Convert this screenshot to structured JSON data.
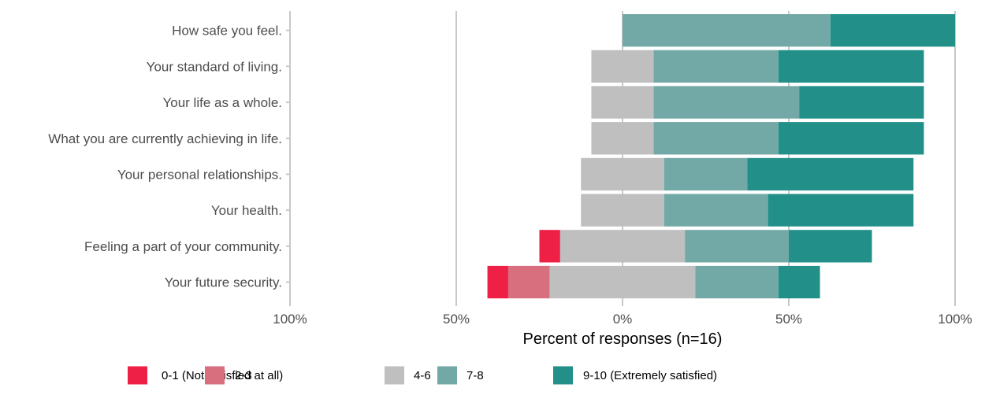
{
  "chart_data": {
    "type": "bar",
    "orientation": "horizontal",
    "stacking": "diverging",
    "categories": [
      "How safe you feel.",
      "Your standard of living.",
      "Your life as a whole.",
      "What you are currently achieving in life.",
      "Your personal relationships.",
      "Your health.",
      "Feeling a part of your community.",
      "Your future security."
    ],
    "series": [
      {
        "name": "0-1 (Not satisfied at all)",
        "color": "#ee2045",
        "side": "negative",
        "values": [
          0,
          0,
          0,
          0,
          0,
          0,
          6.25,
          6.25
        ]
      },
      {
        "name": "2-3",
        "color": "#d86f7f",
        "side": "negative",
        "values": [
          0,
          0,
          0,
          0,
          0,
          0,
          0,
          12.5
        ]
      },
      {
        "name": "4-6",
        "color": "#bfbfbf",
        "side": "split",
        "values": [
          0,
          18.75,
          18.75,
          18.75,
          25,
          25,
          37.5,
          43.75
        ]
      },
      {
        "name": "7-8",
        "color": "#72a9a6",
        "side": "positive",
        "values": [
          62.5,
          37.5,
          43.75,
          37.5,
          25,
          31.25,
          31.25,
          25
        ]
      },
      {
        "name": "9-10 (Extremely satisfied)",
        "color": "#229089",
        "side": "positive",
        "values": [
          37.5,
          43.75,
          37.5,
          43.75,
          50,
          43.75,
          25,
          12.5
        ]
      }
    ],
    "xlabel": "Percent of responses (n=16)",
    "xticks": [
      "100%",
      "50%",
      "0%",
      "50%",
      "100%"
    ],
    "xlim": [
      -100,
      100
    ],
    "grid": "vertical major",
    "legend": "bottom"
  }
}
